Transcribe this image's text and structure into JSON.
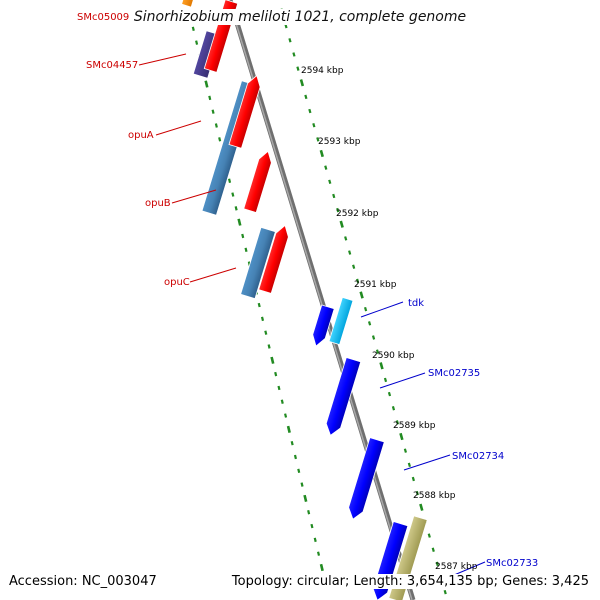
{
  "title": "Sinorhizobium meliloti 1021, complete genome",
  "footer": {
    "accession": "Accession: NC_003047",
    "topology": "Topology: circular; Length: 3,654,135 bp; Genes: 3,425"
  },
  "kbp_ticks": [
    "2594 kbp",
    "2593 kbp",
    "2592 kbp",
    "2591 kbp",
    "2590 kbp",
    "2589 kbp",
    "2588 kbp",
    "2587 kbp"
  ],
  "gene_labels": [
    {
      "text": "SMc05009",
      "color": "#cc0000"
    },
    {
      "text": "SMc04457",
      "color": "#cc0000"
    },
    {
      "text": "opuA",
      "color": "#cc0000"
    },
    {
      "text": "opuB",
      "color": "#cc0000"
    },
    {
      "text": "opuC",
      "color": "#cc0000"
    },
    {
      "text": "tdk",
      "color": "#0000cc"
    },
    {
      "text": "SMc02735",
      "color": "#0000cc"
    },
    {
      "text": "SMc02734",
      "color": "#0000cc"
    },
    {
      "text": "SMc02733",
      "color": "#0000cc"
    }
  ],
  "colors": {
    "backbone": "#888888",
    "tick_marks": "#228b22",
    "red_gene": "#ff0000",
    "steelblue_gene": "#4682b4",
    "darkpurple_gene": "#483d8b",
    "orange_gene": "#ff8c00",
    "blue_gene": "#0000ff",
    "cyan_gene": "#00bfff",
    "khaki_gene": "#bdb76b"
  }
}
